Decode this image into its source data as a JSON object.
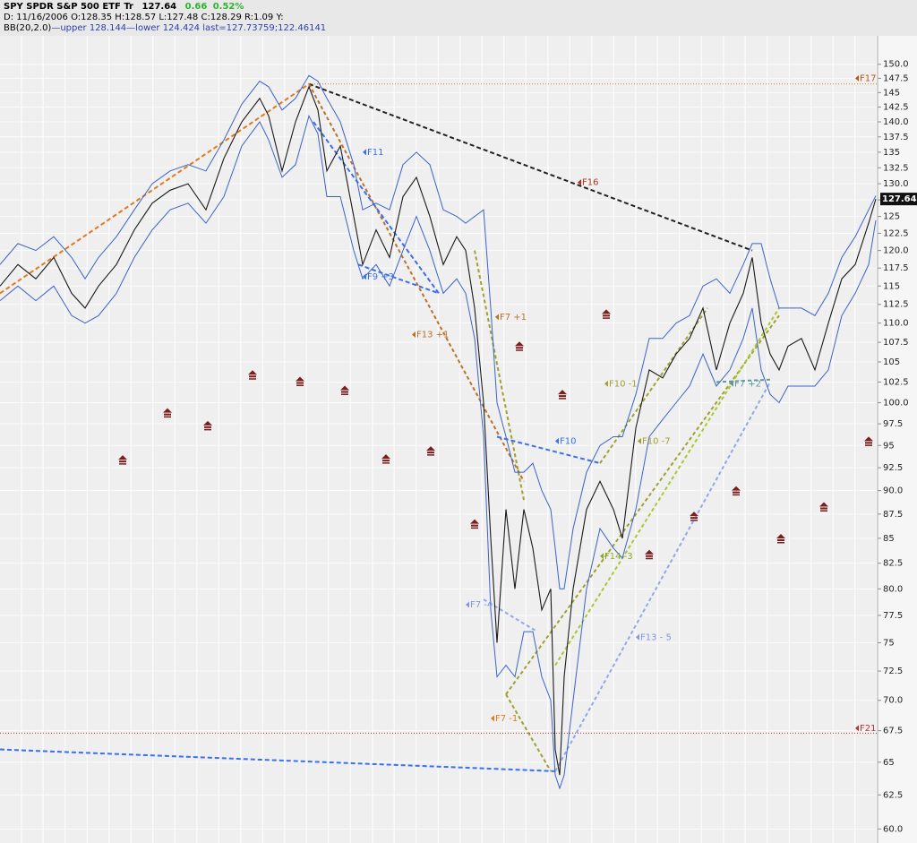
{
  "header": {
    "symbol": "SPY SPDR S&P 500 ETF Tr",
    "change": "0.66",
    "change_pct": "0.52%",
    "ohlc": "D: 11/16/2006 O:128.35 H:128.57 L:127.48 C:128.29 R:1.09 Y:",
    "bb": "BB(20,2.0)",
    "upper": "upper 128.144",
    "lower": "lower 124.424",
    "last": "last=127.73759;122.46141"
  },
  "chart_data": {
    "type": "line",
    "log_scale": true,
    "grid": true,
    "last_price": 127.64,
    "xlim": [
      0,
      980
    ],
    "ylim": [
      59,
      155.2
    ],
    "yticks": [
      {
        "value": 150,
        "label": "150.0"
      },
      147.5,
      145,
      142.5,
      {
        "value": 140,
        "label": "140.0"
      },
      137.5,
      135,
      132.5,
      {
        "value": 130,
        "label": "130.0"
      },
      127.5,
      125,
      122.5,
      {
        "value": 120,
        "label": "120.0"
      },
      117.5,
      115,
      112.5,
      {
        "value": 110,
        "label": "110.0"
      },
      107.5,
      105,
      102.5,
      {
        "value": 100,
        "label": "100.0"
      },
      97.5,
      95,
      92.5,
      {
        "value": 90,
        "label": "90.0"
      },
      87.5,
      85,
      82.5,
      {
        "value": 80,
        "label": "80.0"
      },
      77.5,
      75,
      72.5,
      {
        "value": 70,
        "label": "70.0"
      },
      67.5,
      65,
      62.5,
      {
        "value": 60,
        "label": "60.0"
      }
    ],
    "x": [
      0,
      20,
      40,
      60,
      80,
      95,
      110,
      130,
      150,
      170,
      190,
      210,
      230,
      250,
      270,
      290,
      300,
      315,
      330,
      345,
      355,
      365,
      380,
      395,
      405,
      420,
      435,
      450,
      465,
      480,
      495,
      510,
      520,
      530,
      540,
      548,
      555,
      565,
      575,
      585,
      595,
      605,
      615,
      620,
      625,
      630,
      640,
      655,
      670,
      685,
      695,
      710,
      725,
      740,
      755,
      770,
      785,
      800,
      815,
      830,
      840,
      850,
      860,
      870,
      880,
      895,
      910,
      925,
      940,
      955,
      970,
      978
    ],
    "series": [
      {
        "color": "#3a64c8",
        "values": [
          118,
          121,
          120,
          122,
          119,
          116,
          119,
          122,
          126,
          130,
          132,
          133,
          132,
          137,
          143,
          147,
          146,
          142,
          144,
          148,
          147,
          144,
          140,
          133,
          126,
          127,
          126,
          133,
          135,
          133,
          126,
          125,
          124,
          125,
          126,
          112,
          100,
          96,
          92,
          92,
          93,
          90,
          88,
          84,
          80,
          80,
          86,
          92,
          95,
          96,
          96,
          101,
          108,
          108,
          110,
          111,
          115,
          116,
          114,
          118,
          121,
          121,
          116,
          112,
          112,
          112,
          111,
          114,
          119,
          122,
          126,
          128.144
        ]
      },
      {
        "color": "#3a64c8",
        "values": [
          113,
          115,
          113,
          115,
          111,
          110,
          111,
          114,
          119,
          123,
          126,
          127,
          124,
          128,
          136,
          140,
          137,
          131,
          133,
          141,
          138,
          128,
          128,
          120,
          116,
          118,
          115,
          120,
          125,
          120,
          114,
          116,
          114,
          108,
          96,
          78,
          72,
          73,
          72,
          76,
          76,
          72,
          70,
          64,
          63,
          64,
          70,
          80,
          86,
          84,
          83,
          88,
          96,
          98,
          100,
          102,
          106,
          102,
          104,
          108,
          112,
          104,
          101,
          100,
          102,
          102,
          102,
          104,
          111,
          114,
          118,
          124.424
        ]
      },
      {
        "color": "#1a1a1a",
        "values": [
          115,
          118,
          116,
          119,
          114,
          112,
          115,
          118,
          123,
          127,
          129,
          130,
          126,
          134,
          140,
          144,
          141,
          132,
          140,
          146,
          142,
          132,
          136,
          125,
          118,
          123,
          119,
          128,
          131,
          125,
          118,
          122,
          120,
          112,
          100,
          85,
          75,
          88,
          80,
          88,
          84,
          78,
          80,
          66,
          64,
          72,
          80,
          88,
          91,
          88,
          85,
          97,
          104,
          103,
          106,
          108,
          112,
          104,
          110,
          114,
          119,
          110,
          106,
          104,
          107,
          108,
          104,
          110,
          116,
          118,
          124,
          127.64
        ]
      }
    ],
    "trend_lines": [
      {
        "color": "#e07a20",
        "dash": "5,3",
        "x": [
          0,
          345
        ],
        "y": [
          114,
          146.5
        ]
      },
      {
        "color": "#222222",
        "dash": "5,3",
        "x": [
          345,
          840
        ],
        "y": [
          146.5,
          120
        ]
      },
      {
        "color": "#b8732a",
        "dash": "4,3",
        "x": [
          345,
          585
        ],
        "y": [
          146.5,
          91
        ]
      },
      {
        "color": "#a0a030",
        "dash": "4,3",
        "x": [
          530,
          585
        ],
        "y": [
          120,
          89
        ]
      },
      {
        "color": "#3b6ff0",
        "dash": "5,3",
        "x": [
          350,
          490
        ],
        "y": [
          140,
          114
        ]
      },
      {
        "color": "#3b6ff0",
        "dash": "5,3",
        "x": [
          400,
          490
        ],
        "y": [
          118,
          114
        ]
      },
      {
        "color": "#3b6ff0",
        "dash": "5,3",
        "x": [
          555,
          670
        ],
        "y": [
          96,
          93
        ]
      },
      {
        "color": "#3b6ff0",
        "dash": "5,3",
        "x": [
          0,
          620
        ],
        "y": [
          66,
          64.3
        ]
      },
      {
        "color": "#a0a030",
        "dash": "4,3",
        "x": [
          565,
          615
        ],
        "y": [
          70.5,
          64.3
        ]
      },
      {
        "color": "#a0a030",
        "dash": "4,3",
        "x": [
          565,
          870
        ],
        "y": [
          70.5,
          111
        ]
      },
      {
        "color": "#a8c830",
        "dash": "4,3",
        "x": [
          620,
          870
        ],
        "y": [
          73,
          112
        ]
      },
      {
        "color": "#8fa8e8",
        "dash": "4,3",
        "x": [
          620,
          860
        ],
        "y": [
          64.3,
          102.5
        ]
      },
      {
        "color": "#a0a030",
        "dash": "4,3",
        "x": [
          670,
          790
        ],
        "y": [
          93,
          112
        ]
      },
      {
        "color": "#5a9a9a",
        "dash": "4,3",
        "x": [
          800,
          860
        ],
        "y": [
          102.5,
          102.8
        ]
      },
      {
        "color": "#8fa8e8",
        "dash": "4,3",
        "x": [
          540,
          600
        ],
        "y": [
          79,
          76
        ]
      },
      {
        "color": "#e07a20",
        "dash": "1,2",
        "x": [
          345,
          980
        ],
        "y": [
          146.5,
          146.5
        ]
      },
      {
        "color": "#c03030",
        "dash": "1,2",
        "x": [
          0,
          980
        ],
        "y": [
          67.3,
          67.3
        ]
      }
    ],
    "labels": [
      {
        "text": "F17",
        "color": "#c05020",
        "x": 955,
        "y": 147.5
      },
      {
        "text": "F16",
        "color": "#b03020",
        "x": 645,
        "y": 130.2
      },
      {
        "text": "F11",
        "color": "#3b6ff0",
        "x": 405,
        "y": 135
      },
      {
        "text": "F9 +3",
        "color": "#3b6ff0",
        "x": 405,
        "y": 116.3
      },
      {
        "text": "F13 +1",
        "color": "#b8732a",
        "x": 460,
        "y": 108.5
      },
      {
        "text": "F7 +1",
        "color": "#b8732a",
        "x": 553,
        "y": 110.8
      },
      {
        "text": "F10 -1",
        "color": "#a0a030",
        "x": 675,
        "y": 102.3
      },
      {
        "text": "F10",
        "color": "#3b6ff0",
        "x": 620,
        "y": 95.5
      },
      {
        "text": "F10 -7",
        "color": "#a0a030",
        "x": 712,
        "y": 95.5
      },
      {
        "text": "F7 +2",
        "color": "#5a9a9a",
        "x": 815,
        "y": 102.3
      },
      {
        "text": "F14 -3",
        "color": "#8aaa20",
        "x": 670,
        "y": 83.2
      },
      {
        "text": "F7 -4",
        "color": "#7f98e0",
        "x": 520,
        "y": 78.5
      },
      {
        "text": "F13 - 5",
        "color": "#7f98e0",
        "x": 710,
        "y": 75.5
      },
      {
        "text": "F7 -1",
        "color": "#e07a20",
        "x": 548,
        "y": 68.5
      },
      {
        "text": "F21",
        "color": "#c03030",
        "x": 955,
        "y": 67.7
      }
    ],
    "markers": {
      "color": "#7a1e1e",
      "x": [
        137,
        187,
        232,
        282,
        335,
        385,
        431,
        481,
        530,
        580,
        628,
        677,
        725,
        775,
        822,
        872,
        920,
        970
      ],
      "y": [
        93.3,
        98.7,
        97.2,
        103.3,
        102.5,
        101.4,
        93.4,
        94.3,
        86.4,
        106.9,
        100.9,
        111.1,
        83.3,
        87.2,
        89.9,
        84.9,
        88.2,
        95.4
      ]
    }
  }
}
